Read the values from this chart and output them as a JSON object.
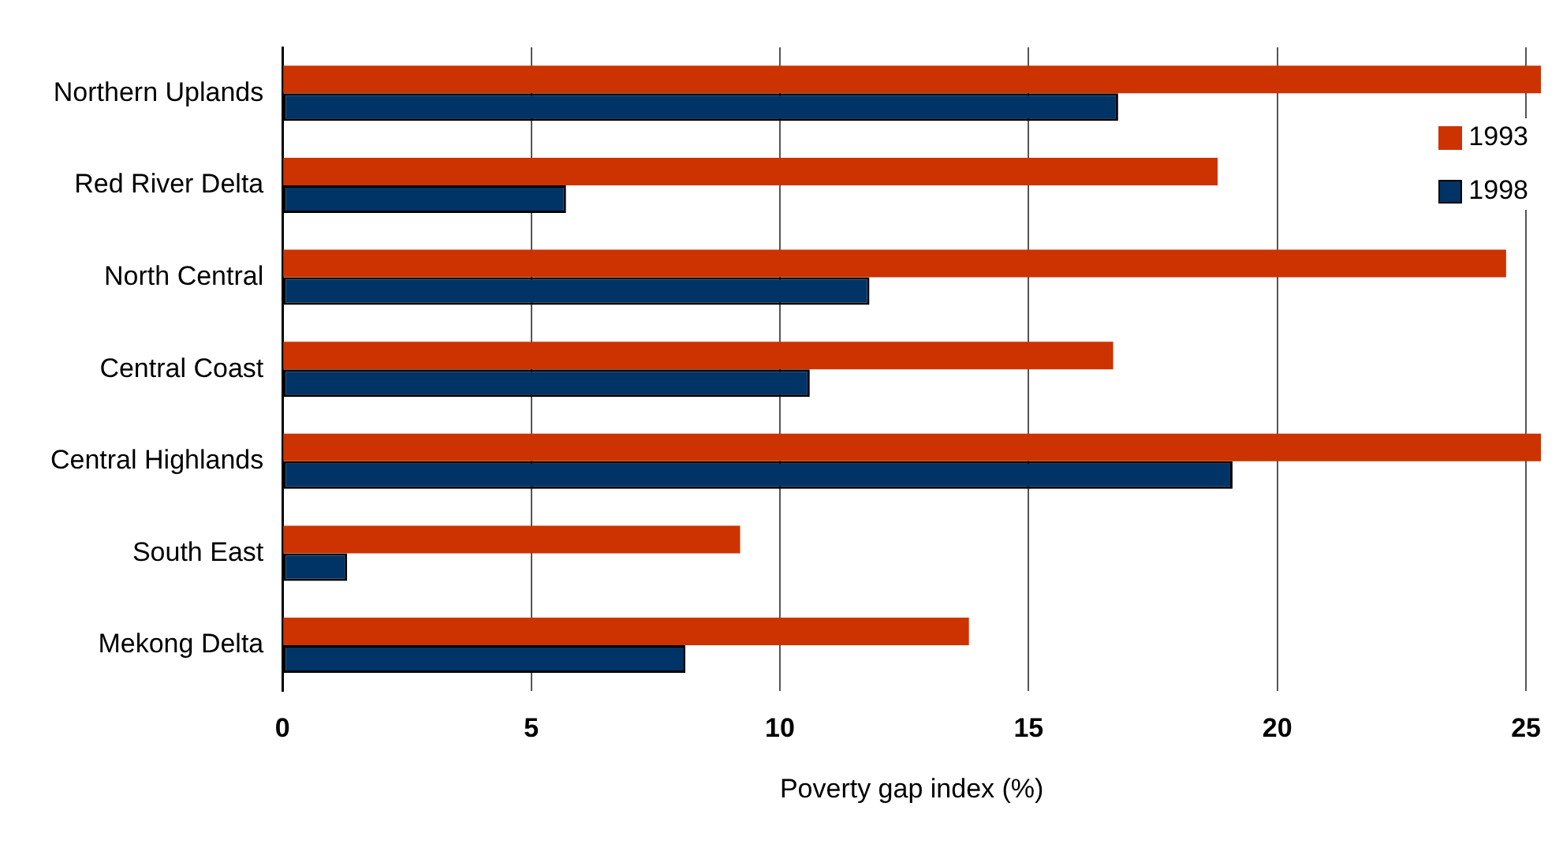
{
  "chart_data": {
    "type": "bar",
    "orientation": "horizontal",
    "xlabel": "Poverty gap index (%)",
    "categories": [
      "Northern Uplands",
      "Red River Delta",
      "North Central",
      "Central Coast",
      "Central Highlands",
      "South East",
      "Mekong Delta"
    ],
    "series": [
      {
        "name": "1993",
        "color": "#cc3300",
        "values": [
          25.3,
          18.8,
          24.6,
          16.7,
          25.3,
          9.2,
          13.8
        ]
      },
      {
        "name": "1998",
        "color": "#003366",
        "values": [
          16.8,
          5.7,
          11.8,
          10.6,
          19.1,
          1.3,
          8.1
        ]
      }
    ],
    "xlim": [
      0,
      25.3
    ],
    "xticks": [
      0,
      5,
      10,
      15,
      20,
      25
    ],
    "grid": "x",
    "legend": "top right"
  }
}
